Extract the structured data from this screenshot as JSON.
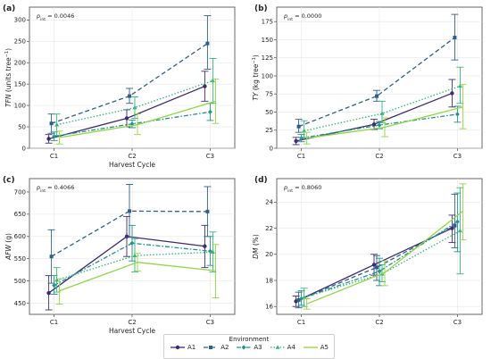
{
  "chart_data": [
    {
      "type": "line",
      "panel_label": "(a)",
      "pint": "0.0046",
      "ylabel_var": "TFN",
      "ylabel_unit": "(units tree",
      "xlabel": "Harvest Cycle",
      "categories": [
        "C1",
        "C2",
        "C3"
      ],
      "ylim": [
        0,
        330
      ],
      "yticks": [
        0,
        50,
        100,
        150,
        200,
        250,
        300
      ],
      "grid": true,
      "series": [
        {
          "name": "A1",
          "values": [
            22,
            70,
            145
          ],
          "err": [
            [
              12,
              32
            ],
            [
              50,
              90
            ],
            [
              110,
              180
            ]
          ]
        },
        {
          "name": "A2",
          "values": [
            58,
            122,
            245
          ],
          "err": [
            [
              35,
              80
            ],
            [
              105,
              140
            ],
            [
              185,
              310
            ]
          ]
        },
        {
          "name": "A3",
          "values": [
            28,
            57,
            85
          ],
          "err": [
            [
              18,
              38
            ],
            [
              48,
              66
            ],
            [
              65,
              105
            ]
          ]
        },
        {
          "name": "A4",
          "values": [
            55,
            95,
            158
          ],
          "err": [
            [
              30,
              80
            ],
            [
              70,
              120
            ],
            [
              105,
              210
            ]
          ]
        },
        {
          "name": "A5",
          "values": [
            25,
            55,
            110
          ],
          "err": [
            [
              10,
              40
            ],
            [
              32,
              80
            ],
            [
              58,
              162
            ]
          ]
        }
      ]
    },
    {
      "type": "line",
      "panel_label": "(b)",
      "pint": "0.0000",
      "ylabel_var": "TY",
      "ylabel_unit": "(kg tree",
      "xlabel": "",
      "categories": [
        "C1",
        "C2",
        "C3"
      ],
      "ylim": [
        0,
        195
      ],
      "yticks": [
        0,
        25,
        50,
        75,
        100,
        125,
        150,
        175
      ],
      "grid": true,
      "series": [
        {
          "name": "A1",
          "values": [
            10,
            33,
            76
          ],
          "err": [
            [
              5,
              15
            ],
            [
              26,
              40
            ],
            [
              57,
              95
            ]
          ]
        },
        {
          "name": "A2",
          "values": [
            30,
            72,
            153
          ],
          "err": [
            [
              22,
              40
            ],
            [
              65,
              80
            ],
            [
              122,
              185
            ]
          ]
        },
        {
          "name": "A3",
          "values": [
            14,
            32,
            47
          ],
          "err": [
            [
              9,
              19
            ],
            [
              27,
              37
            ],
            [
              36,
              58
            ]
          ]
        },
        {
          "name": "A4",
          "values": [
            24,
            48,
            86
          ],
          "err": [
            [
              15,
              38
            ],
            [
              35,
              65
            ],
            [
              62,
              112
            ]
          ]
        },
        {
          "name": "A5",
          "values": [
            14,
            29,
            57
          ],
          "err": [
            [
              6,
              22
            ],
            [
              16,
              42
            ],
            [
              27,
              88
            ]
          ]
        }
      ]
    },
    {
      "type": "line",
      "panel_label": "(c)",
      "pint": "0.4066",
      "ylabel_var": "AFW",
      "ylabel_unit": "(g)",
      "xlabel": "Harvest Cycle",
      "categories": [
        "C1",
        "C2",
        "C3"
      ],
      "ylim": [
        425,
        730
      ],
      "yticks": [
        450,
        500,
        550,
        600,
        650,
        700
      ],
      "grid": true,
      "series": [
        {
          "name": "A1",
          "values": [
            473,
            600,
            578
          ],
          "err": [
            [
              435,
              512
            ],
            [
              555,
              645
            ],
            [
              530,
              625
            ]
          ]
        },
        {
          "name": "A2",
          "values": [
            555,
            657,
            656
          ],
          "err": [
            [
              495,
              615
            ],
            [
              598,
              717
            ],
            [
              600,
              712
            ]
          ]
        },
        {
          "name": "A3",
          "values": [
            490,
            585,
            567
          ],
          "err": [
            [
              470,
              512
            ],
            [
              545,
              625
            ],
            [
              535,
              600
            ]
          ]
        },
        {
          "name": "A4",
          "values": [
            502,
            557,
            565
          ],
          "err": [
            [
              475,
              530
            ],
            [
              520,
              595
            ],
            [
              520,
              610
            ]
          ]
        },
        {
          "name": "A5",
          "values": [
            478,
            542,
            523
          ],
          "err": [
            [
              448,
              505
            ],
            [
              522,
              562
            ],
            [
              462,
              582
            ]
          ]
        }
      ]
    },
    {
      "type": "line",
      "panel_label": "(d)",
      "pint": "0.8060",
      "ylabel_var": "DM",
      "ylabel_unit": "(%)",
      "xlabel": "",
      "categories": [
        "C1",
        "C2",
        "C3"
      ],
      "ylim": [
        15.4,
        25.8
      ],
      "yticks": [
        16,
        18,
        20,
        22,
        24
      ],
      "grid": true,
      "series": [
        {
          "name": "A1",
          "values": [
            16.4,
            19.2,
            22.0
          ],
          "err": [
            [
              16.0,
              16.8
            ],
            [
              18.4,
              20.0
            ],
            [
              20.9,
              23.0
            ]
          ]
        },
        {
          "name": "A2",
          "values": [
            16.5,
            19.0,
            22.2
          ],
          "err": [
            [
              15.9,
              17.1
            ],
            [
              18.0,
              19.9
            ],
            [
              20.5,
              24.6
            ]
          ]
        },
        {
          "name": "A3",
          "values": [
            16.6,
            18.7,
            22.5
          ],
          "err": [
            [
              16.1,
              17.2
            ],
            [
              17.6,
              19.7
            ],
            [
              20.2,
              24.7
            ]
          ]
        },
        {
          "name": "A4",
          "values": [
            16.7,
            18.5,
            21.8
          ],
          "err": [
            [
              16.0,
              17.4
            ],
            [
              17.9,
              19.2
            ],
            [
              18.5,
              25.1
            ]
          ]
        },
        {
          "name": "A5",
          "values": [
            16.2,
            18.6,
            23.3
          ],
          "err": [
            [
              15.8,
              16.6
            ],
            [
              17.6,
              19.5
            ],
            [
              21.1,
              25.4
            ]
          ]
        }
      ]
    }
  ],
  "legend": {
    "title": "Environment",
    "items": [
      "A1",
      "A2",
      "A3",
      "A4",
      "A5"
    ]
  },
  "styles": {
    "A1": {
      "color": "#3f2a72",
      "dash": "",
      "marker": "circle"
    },
    "A2": {
      "color": "#2e5f8a",
      "dash": "5,3",
      "marker": "square"
    },
    "A3": {
      "color": "#21918c",
      "dash": "5,2,1.5,2",
      "marker": "diamond"
    },
    "A4": {
      "color": "#35b779",
      "dash": "1.5,2",
      "marker": "triangle"
    },
    "A5": {
      "color": "#8fd744",
      "dash": "",
      "marker": "none"
    }
  }
}
